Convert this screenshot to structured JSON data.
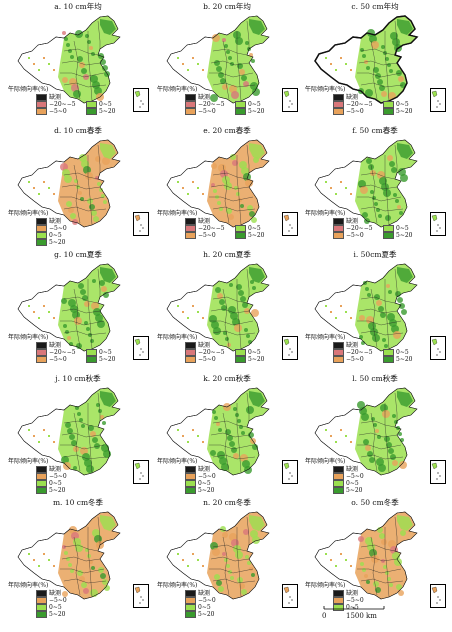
{
  "colors": {
    "missing": "#1a1a1a",
    "neg20_5": "#d9777a",
    "neg5_0": "#e8a25b",
    "pos0_5": "#9be04f",
    "pos5_20": "#3a9b2e",
    "land": "#ffffff",
    "border": "#111111"
  },
  "legend_title": "年际倾向率(%)",
  "legend_title_alt": "午际倾向率(%)",
  "legend_labels": {
    "missing": "缺测",
    "neg20_5": "−20~−5",
    "neg5_0": "−5~0",
    "pos0_5": "0~5",
    "pos5_20": "5~20"
  },
  "scale_label": "1500 km",
  "scale_zero": "0",
  "panels": [
    {
      "title": "a. 10 cm年均",
      "legend_title": "午际倾向率(%)",
      "layout": "two-col",
      "dominant": "mixed"
    },
    {
      "title": "b. 20 cm年均",
      "legend_title": "午际倾向率(%)",
      "layout": "two-col",
      "dominant": "mixed"
    },
    {
      "title": "c. 50 cm年均",
      "legend_title": "午际倾向率(%)",
      "layout": "two-col",
      "dominant": "green"
    },
    {
      "title": "d. 10 cm春季",
      "legend_title": "年际倾向率(%)",
      "layout": "one-col",
      "dominant": "orange"
    },
    {
      "title": "e. 20 cm春季",
      "legend_title": "年际倾向率(%)",
      "layout": "two-col",
      "dominant": "orange"
    },
    {
      "title": "f. 50 cm春季",
      "legend_title": "年际倾向率(%)",
      "layout": "two-col",
      "dominant": "green"
    },
    {
      "title": "g. 10 cm夏季",
      "legend_title": "年际倾向率(%)",
      "layout": "two-col",
      "dominant": "green"
    },
    {
      "title": "h. 20 cm夏季",
      "legend_title": "年际倾向率(%)",
      "layout": "two-col",
      "dominant": "green"
    },
    {
      "title": "i. 50cm夏季",
      "legend_title": "年际倾向率(%)",
      "layout": "two-col",
      "dominant": "green"
    },
    {
      "title": "j. 10 cm秋季",
      "legend_title": "年际倾向率(%)",
      "layout": "one-col",
      "dominant": "green"
    },
    {
      "title": "k. 20 cm秋季",
      "legend_title": "年际倾向率(%)",
      "layout": "one-col",
      "dominant": "green"
    },
    {
      "title": "l. 50 cm秋季",
      "legend_title": "年际倾向率(%)",
      "layout": "one-col",
      "dominant": "green"
    },
    {
      "title": "m. 10 cm冬季",
      "legend_title": "年际倾向率(%)",
      "layout": "one-col",
      "dominant": "orange"
    },
    {
      "title": "n. 20 cm冬季",
      "legend_title": "年际倾向率(%)",
      "layout": "one-col",
      "dominant": "orange"
    },
    {
      "title": "o. 50 cm冬季",
      "legend_title": "年际倾向率(%)",
      "layout": "one-col-noneg",
      "dominant": "orange"
    }
  ]
}
